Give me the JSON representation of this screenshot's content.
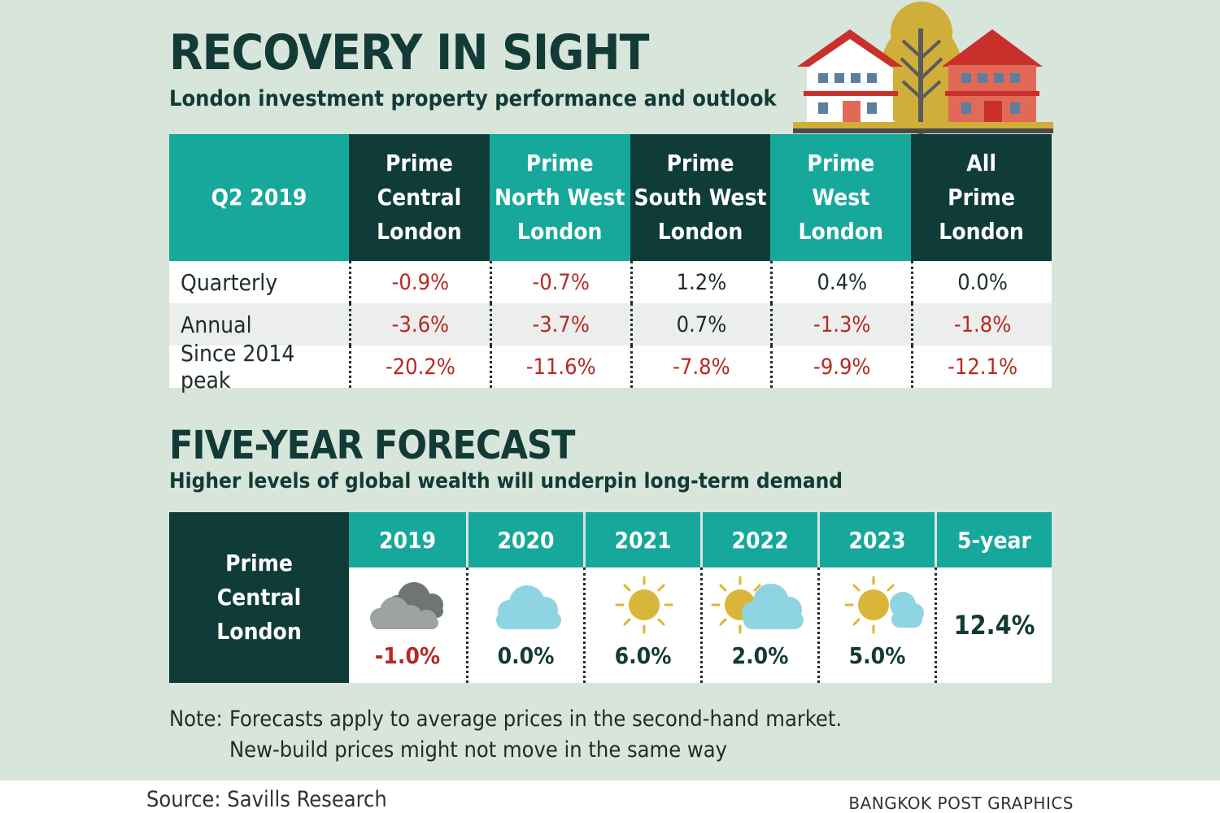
{
  "header": {
    "title": "RECOVERY IN SIGHT",
    "subtitle": "London investment property performance and outlook"
  },
  "chart_data": [
    {
      "type": "table",
      "corner_label": "Q2 2019",
      "columns": [
        {
          "lines": [
            "Prime",
            "Central",
            "London"
          ],
          "style": "dark"
        },
        {
          "lines": [
            "Prime",
            "North West",
            "London"
          ],
          "style": "teal"
        },
        {
          "lines": [
            "Prime",
            "South West",
            "London"
          ],
          "style": "dark"
        },
        {
          "lines": [
            "Prime",
            "West",
            "London"
          ],
          "style": "teal"
        },
        {
          "lines": [
            "All",
            "Prime",
            "London"
          ],
          "style": "dark"
        }
      ],
      "rows": [
        {
          "label": "Quarterly",
          "values": [
            "-0.9%",
            "-0.7%",
            "1.2%",
            "0.4%",
            "0.0%"
          ]
        },
        {
          "label": "Annual",
          "values": [
            "-3.6%",
            "-3.7%",
            "0.7%",
            "-1.3%",
            "-1.8%"
          ]
        },
        {
          "label": "Since 2014 peak",
          "values": [
            "-20.2%",
            "-11.6%",
            "-7.8%",
            "-9.9%",
            "-12.1%"
          ]
        }
      ]
    },
    {
      "type": "table",
      "title": "FIVE-YEAR FORECAST",
      "subtitle": "Higher levels of global wealth will underpin long-term demand",
      "row_label_lines": [
        "Prime",
        "Central",
        "London"
      ],
      "years": [
        {
          "year": "2019",
          "value": "-1.0%",
          "icon": "dark-clouds-icon"
        },
        {
          "year": "2020",
          "value": "0.0%",
          "icon": "cloud-icon"
        },
        {
          "year": "2021",
          "value": "6.0%",
          "icon": "sun-icon"
        },
        {
          "year": "2022",
          "value": "2.0%",
          "icon": "sun-behind-cloud-icon"
        },
        {
          "year": "2023",
          "value": "5.0%",
          "icon": "sun-small-cloud-icon"
        }
      ],
      "five_year": {
        "label": "5-year",
        "value": "12.4%"
      }
    }
  ],
  "note": {
    "lead": "Note:",
    "line1": "Forecasts apply to average prices in the second-hand market.",
    "line2": "New-build prices might not move in the same way"
  },
  "footer": {
    "source": "Source: Savills Research",
    "credit": "BANGKOK POST GRAPHICS"
  },
  "colors": {
    "background": "#d7e5da",
    "dark_teal": "#0f3b38",
    "teal": "#16a89a",
    "negative": "#b52a22"
  }
}
